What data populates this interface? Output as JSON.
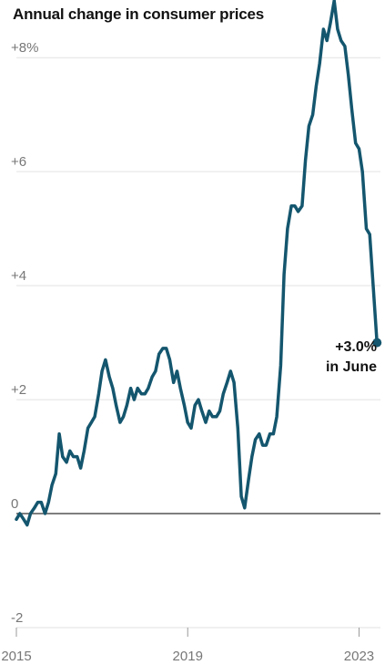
{
  "chart_data": {
    "type": "line",
    "title": "Annual change in consumer prices",
    "xlabel": "",
    "ylabel": "",
    "ylim": [
      -2,
      8.9
    ],
    "xlim": [
      2015.0,
      2023.5
    ],
    "y_ticks": [
      {
        "value": 8,
        "label": "+8%"
      },
      {
        "value": 6,
        "label": "+6"
      },
      {
        "value": 4,
        "label": "+4"
      },
      {
        "value": 2,
        "label": "+2"
      },
      {
        "value": 0,
        "label": "0"
      },
      {
        "value": -2,
        "label": "-2"
      }
    ],
    "x_ticks": [
      {
        "value": 2015,
        "label": "2015"
      },
      {
        "value": 2019,
        "label": "2019"
      },
      {
        "value": 2023,
        "label": "2023"
      }
    ],
    "grid": true,
    "colors": {
      "line": "#14566e",
      "grid": "#e2e2e2",
      "zero": "#555555",
      "text": "#121212",
      "tick_text": "#777777"
    },
    "annotation": {
      "line1": "+3.0%",
      "line2": "in June"
    },
    "series": [
      {
        "values": [
          [
            2015.0,
            -0.1
          ],
          [
            2015.08,
            0.0
          ],
          [
            2015.17,
            -0.1
          ],
          [
            2015.25,
            -0.2
          ],
          [
            2015.33,
            0.0
          ],
          [
            2015.42,
            0.1
          ],
          [
            2015.5,
            0.2
          ],
          [
            2015.58,
            0.2
          ],
          [
            2015.67,
            0.0
          ],
          [
            2015.75,
            0.2
          ],
          [
            2015.83,
            0.5
          ],
          [
            2015.92,
            0.7
          ],
          [
            2016.0,
            1.4
          ],
          [
            2016.08,
            1.0
          ],
          [
            2016.17,
            0.9
          ],
          [
            2016.25,
            1.1
          ],
          [
            2016.33,
            1.0
          ],
          [
            2016.42,
            1.0
          ],
          [
            2016.5,
            0.8
          ],
          [
            2016.58,
            1.1
          ],
          [
            2016.67,
            1.5
          ],
          [
            2016.75,
            1.6
          ],
          [
            2016.83,
            1.7
          ],
          [
            2016.92,
            2.1
          ],
          [
            2017.0,
            2.5
          ],
          [
            2017.08,
            2.7
          ],
          [
            2017.17,
            2.4
          ],
          [
            2017.25,
            2.2
          ],
          [
            2017.33,
            1.9
          ],
          [
            2017.42,
            1.6
          ],
          [
            2017.5,
            1.7
          ],
          [
            2017.58,
            1.9
          ],
          [
            2017.67,
            2.2
          ],
          [
            2017.75,
            2.0
          ],
          [
            2017.83,
            2.2
          ],
          [
            2017.92,
            2.1
          ],
          [
            2018.0,
            2.1
          ],
          [
            2018.08,
            2.2
          ],
          [
            2018.17,
            2.4
          ],
          [
            2018.25,
            2.5
          ],
          [
            2018.33,
            2.8
          ],
          [
            2018.42,
            2.9
          ],
          [
            2018.5,
            2.9
          ],
          [
            2018.58,
            2.7
          ],
          [
            2018.67,
            2.3
          ],
          [
            2018.75,
            2.5
          ],
          [
            2018.83,
            2.2
          ],
          [
            2018.92,
            1.9
          ],
          [
            2019.0,
            1.6
          ],
          [
            2019.08,
            1.5
          ],
          [
            2019.17,
            1.9
          ],
          [
            2019.25,
            2.0
          ],
          [
            2019.33,
            1.8
          ],
          [
            2019.42,
            1.6
          ],
          [
            2019.5,
            1.8
          ],
          [
            2019.58,
            1.7
          ],
          [
            2019.67,
            1.7
          ],
          [
            2019.75,
            1.8
          ],
          [
            2019.83,
            2.1
          ],
          [
            2019.92,
            2.3
          ],
          [
            2020.0,
            2.5
          ],
          [
            2020.08,
            2.3
          ],
          [
            2020.17,
            1.5
          ],
          [
            2020.25,
            0.3
          ],
          [
            2020.33,
            0.1
          ],
          [
            2020.42,
            0.6
          ],
          [
            2020.5,
            1.0
          ],
          [
            2020.58,
            1.3
          ],
          [
            2020.67,
            1.4
          ],
          [
            2020.75,
            1.2
          ],
          [
            2020.83,
            1.2
          ],
          [
            2020.92,
            1.4
          ],
          [
            2021.0,
            1.4
          ],
          [
            2021.08,
            1.7
          ],
          [
            2021.17,
            2.6
          ],
          [
            2021.25,
            4.2
          ],
          [
            2021.33,
            5.0
          ],
          [
            2021.42,
            5.4
          ],
          [
            2021.5,
            5.4
          ],
          [
            2021.58,
            5.3
          ],
          [
            2021.67,
            5.4
          ],
          [
            2021.75,
            6.2
          ],
          [
            2021.83,
            6.8
          ],
          [
            2021.92,
            7.0
          ],
          [
            2022.0,
            7.5
          ],
          [
            2022.08,
            7.9
          ],
          [
            2022.17,
            8.5
          ],
          [
            2022.25,
            8.3
          ],
          [
            2022.33,
            8.6
          ],
          [
            2022.42,
            9.0
          ],
          [
            2022.5,
            8.5
          ],
          [
            2022.58,
            8.3
          ],
          [
            2022.67,
            8.2
          ],
          [
            2022.75,
            7.7
          ],
          [
            2022.83,
            7.1
          ],
          [
            2022.92,
            6.5
          ],
          [
            2023.0,
            6.4
          ],
          [
            2023.08,
            6.0
          ],
          [
            2023.17,
            5.0
          ],
          [
            2023.25,
            4.9
          ],
          [
            2023.33,
            4.0
          ],
          [
            2023.42,
            3.0
          ]
        ]
      }
    ]
  }
}
